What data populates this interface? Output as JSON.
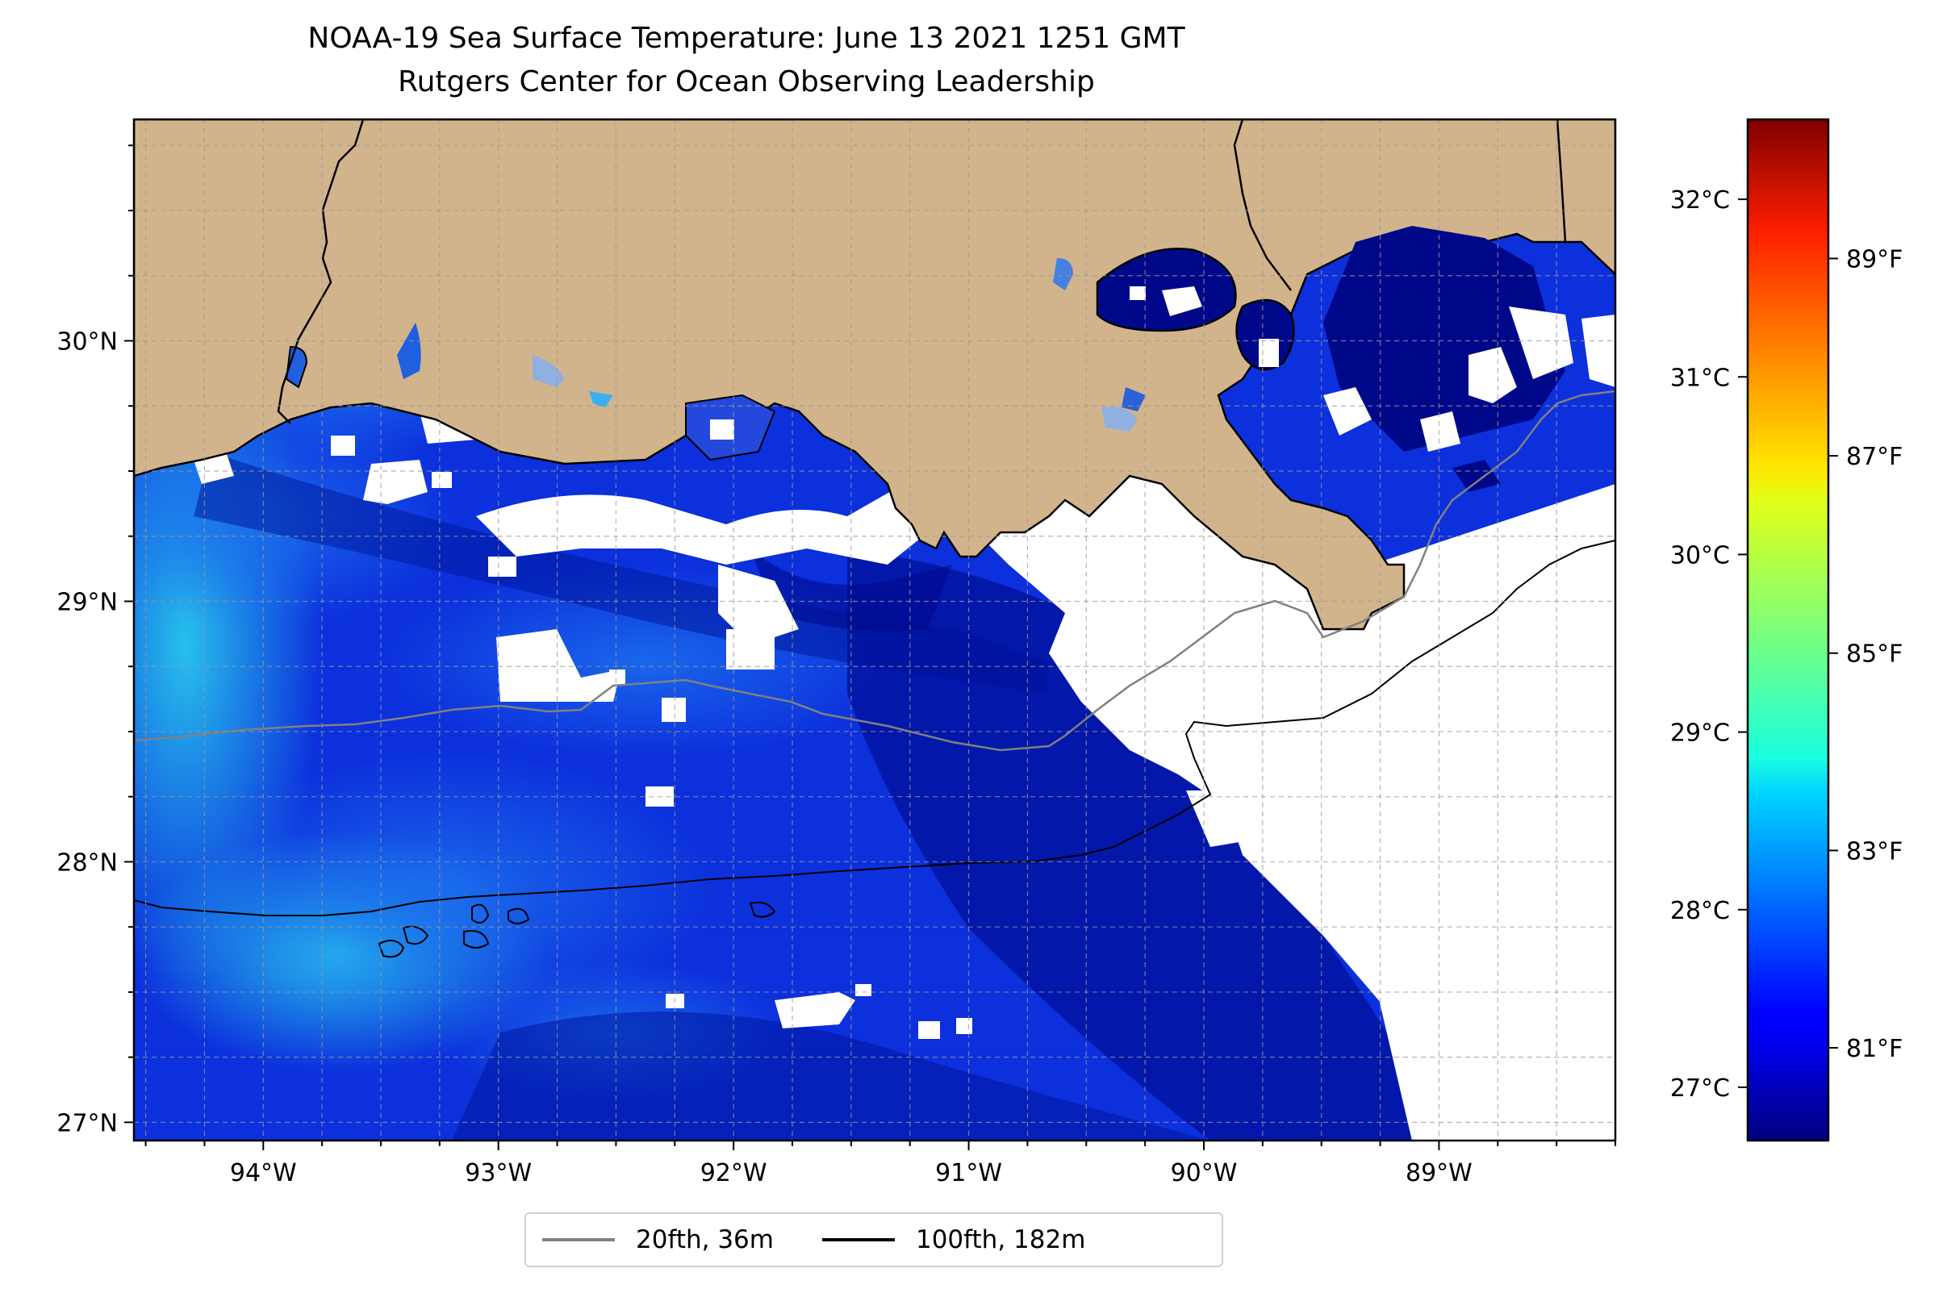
{
  "title": {
    "line1": "NOAA-19 Sea Surface Temperature: June 13 2021 1251 GMT",
    "line2": "Rutgers Center for Ocean Observing Leadership"
  },
  "map": {
    "lon_range": [
      -94.55,
      -88.25
    ],
    "lat_range": [
      26.93,
      30.85
    ],
    "grid": true,
    "x_ticks": [
      {
        "value": -94,
        "label": "94°W"
      },
      {
        "value": -93,
        "label": "93°W"
      },
      {
        "value": -92,
        "label": "92°W"
      },
      {
        "value": -91,
        "label": "91°W"
      },
      {
        "value": -90,
        "label": "90°W"
      },
      {
        "value": -89,
        "label": "89°W"
      }
    ],
    "y_ticks": [
      {
        "value": 27,
        "label": "27°N"
      },
      {
        "value": 28,
        "label": "28°N"
      },
      {
        "value": 29,
        "label": "29°N"
      },
      {
        "value": 30,
        "label": "30°N"
      }
    ],
    "colors": {
      "land": "#d2b48c",
      "no_data": "#ffffff",
      "cold": "#000a8c",
      "cool": "#0a2ee0",
      "mid": "#1e78f0",
      "warm": "#22c0ee"
    }
  },
  "colorbar": {
    "colormap": "jet",
    "celsius_ticks": [
      {
        "value": 27,
        "label": "27°C"
      },
      {
        "value": 28,
        "label": "28°C"
      },
      {
        "value": 29,
        "label": "29°C"
      },
      {
        "value": 30,
        "label": "30°C"
      },
      {
        "value": 31,
        "label": "31°C"
      },
      {
        "value": 32,
        "label": "32°C"
      }
    ],
    "fahrenheit_ticks": [
      {
        "value": 81,
        "label": "81°F"
      },
      {
        "value": 83,
        "label": "83°F"
      },
      {
        "value": 85,
        "label": "85°F"
      },
      {
        "value": 87,
        "label": "87°F"
      },
      {
        "value": 89,
        "label": "89°F"
      }
    ],
    "range_c": [
      26.7,
      32.45
    ]
  },
  "legend": {
    "items": [
      {
        "label": "20fth, 36m",
        "color": "#808080"
      },
      {
        "label": "100fth, 182m",
        "color": "#000000"
      }
    ]
  }
}
